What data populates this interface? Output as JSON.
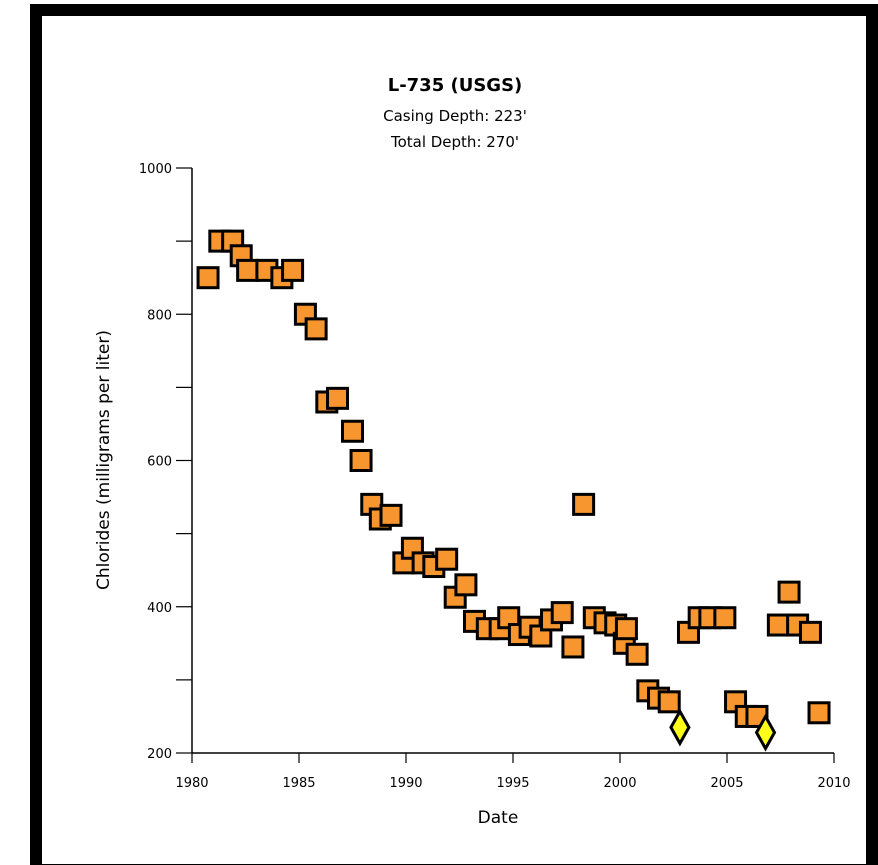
{
  "chart_data": {
    "type": "scatter",
    "title": "L-735  (USGS)",
    "subtitle_lines": [
      "Casing Depth:  223'",
      "Total Depth:  270'"
    ],
    "xlabel": "Date",
    "ylabel": "Chlorides (milligrams per liter)",
    "xlim": [
      1980,
      2010
    ],
    "ylim": [
      200,
      1000
    ],
    "x_ticks": [
      1980,
      1985,
      1990,
      1995,
      2000,
      2005,
      2010
    ],
    "y_ticks": [
      200,
      400,
      600,
      800,
      1000
    ],
    "x_tick_labels": [
      "1980",
      "1985",
      "1990",
      "1995",
      "2000",
      "2005",
      "2010"
    ],
    "y_tick_labels": [
      "200",
      "400",
      "600",
      "800",
      "1000"
    ],
    "grid": false,
    "series": [
      {
        "marker": "square",
        "color": "#F7962F",
        "x": [
          1980.75,
          1981.3,
          1981.9,
          1982.3,
          1982.6,
          1983.5,
          1984.2,
          1984.7,
          1985.3,
          1985.8,
          1986.3,
          1986.8,
          1987.5,
          1987.9,
          1988.4,
          1988.8,
          1989.3,
          1989.9,
          1990.3,
          1990.8,
          1991.3,
          1991.9,
          1992.3,
          1992.8,
          1993.2,
          1993.8,
          1994.4,
          1994.8,
          1995.3,
          1995.8,
          1996.3,
          1996.8,
          1997.3,
          1997.8,
          1998.3,
          1998.8,
          1999.3,
          1999.8,
          2000.2,
          2000.3,
          2000.8,
          2001.3,
          2001.8,
          2002.3,
          2003.2,
          2003.7,
          2004.2,
          2004.9,
          2005.4,
          2005.9,
          2006.4,
          2007.4,
          2007.9,
          2008.3,
          2008.9,
          2009.3
        ],
        "y": [
          850,
          900,
          900,
          880,
          860,
          860,
          850,
          860,
          800,
          780,
          680,
          685,
          640,
          600,
          540,
          520,
          525,
          460,
          480,
          460,
          455,
          465,
          413,
          430,
          380,
          370,
          370,
          385,
          362,
          372,
          360,
          382,
          392,
          345,
          540,
          385,
          378,
          375,
          350,
          370,
          335,
          285,
          275,
          270,
          365,
          385,
          385,
          385,
          270,
          250,
          250,
          375,
          420,
          375,
          365,
          255
        ]
      },
      {
        "marker": "diamond",
        "color": "#FFFF1A",
        "x": [
          2002.8,
          2006.8
        ],
        "y": [
          235,
          228
        ]
      }
    ]
  }
}
